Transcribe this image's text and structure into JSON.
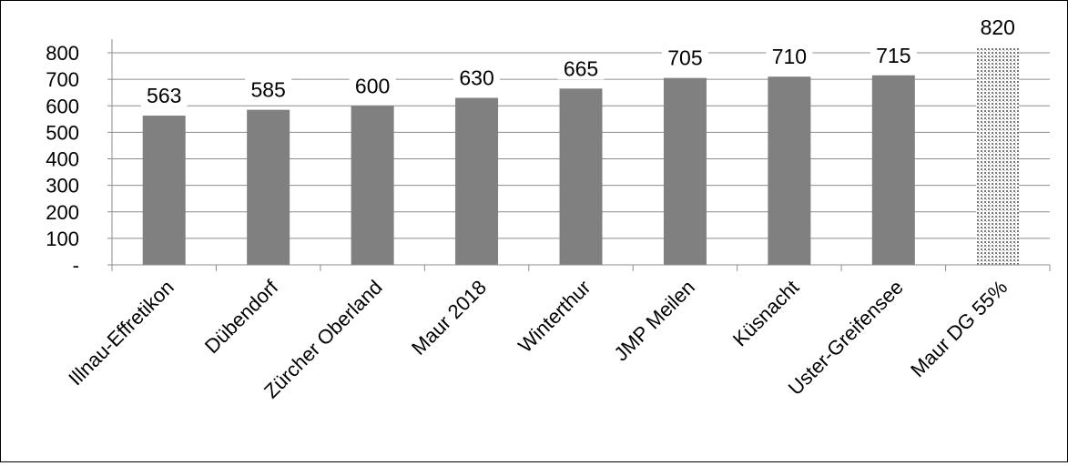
{
  "chart_data": {
    "type": "bar",
    "title": "",
    "xlabel": "",
    "ylabel": "",
    "ylim": [
      0,
      800
    ],
    "yticks": [
      0,
      100,
      200,
      300,
      400,
      500,
      600,
      700,
      800
    ],
    "ytick_labels": [
      "-",
      "100",
      "200",
      "300",
      "400",
      "500",
      "600",
      "700",
      "800"
    ],
    "grid": true,
    "categories": [
      "Illnau-Effretikon",
      "Dübendorf",
      "Zürcher Oberland",
      "Maur 2018",
      "Winterthur",
      "JMP Meilen",
      "Küsnacht",
      "Uster-Greifensee",
      "Maur DG 55%"
    ],
    "values": [
      563,
      585,
      600,
      630,
      665,
      705,
      710,
      715,
      820
    ],
    "data_labels": [
      "563",
      "585",
      "600",
      "630",
      "665",
      "705",
      "710",
      "715",
      "820"
    ],
    "bar_color": "#808080",
    "highlight_index": 8,
    "highlight_style": "dotted"
  }
}
